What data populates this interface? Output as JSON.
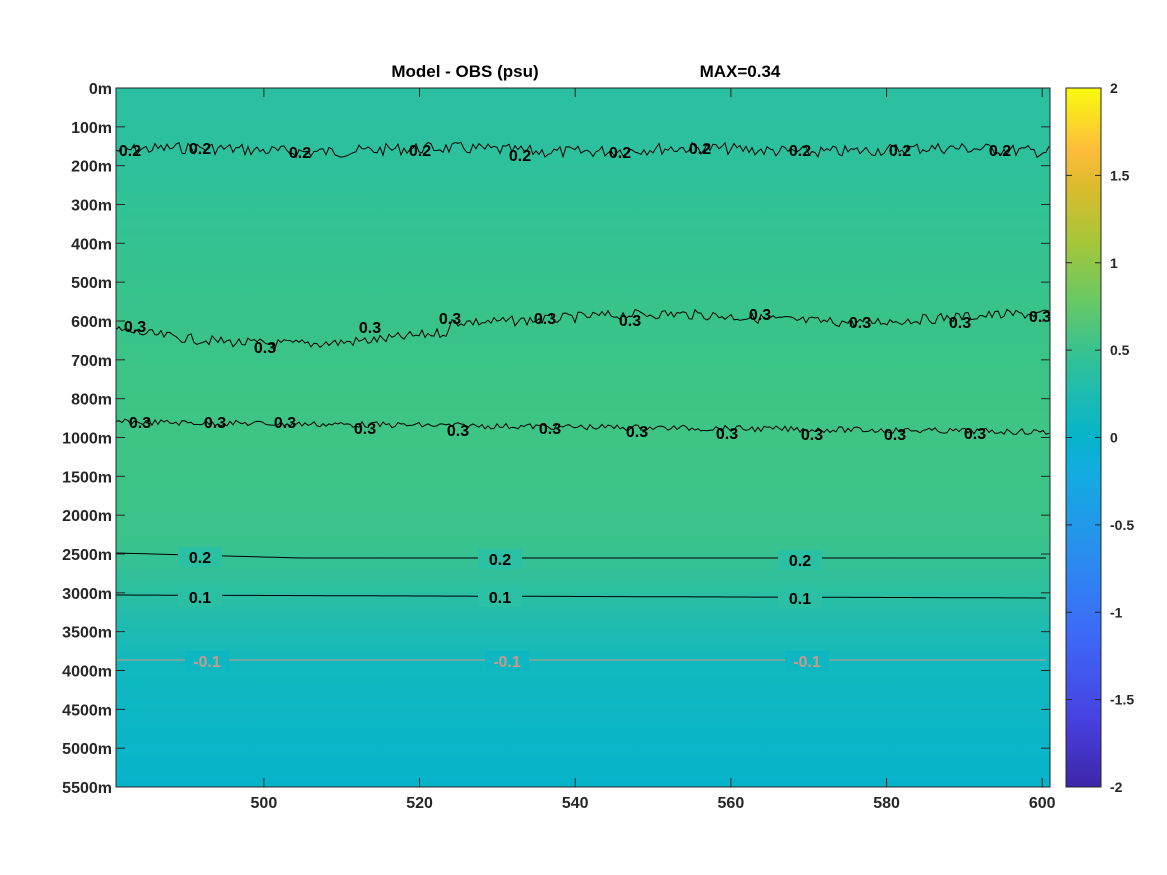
{
  "chart_data": {
    "type": "heatmap",
    "title": "Model - OBS (psu)",
    "annotation": "MAX=0.34",
    "x_ticks": [
      500,
      520,
      540,
      560,
      580,
      600
    ],
    "xlim": [
      481,
      601
    ],
    "y_ticks": [
      "0m",
      "100m",
      "200m",
      "300m",
      "400m",
      "500m",
      "600m",
      "700m",
      "800m",
      "1000m",
      "1500m",
      "2000m",
      "2500m",
      "3000m",
      "3500m",
      "4000m",
      "4500m",
      "5000m",
      "5500m"
    ],
    "colorbar": {
      "ticks": [
        2,
        1.5,
        1,
        0.5,
        0,
        -0.5,
        -1,
        -1.5,
        -2
      ],
      "clim": [
        -2,
        2
      ],
      "colormap": "parula"
    },
    "background_profile": [
      {
        "depth": "0m",
        "value": 0.22
      },
      {
        "depth": "200m",
        "value": 0.25
      },
      {
        "depth": "600m",
        "value": 0.3
      },
      {
        "depth": "800m",
        "value": 0.32
      },
      {
        "depth": "1000m",
        "value": 0.3
      },
      {
        "depth": "2000m",
        "value": 0.25
      },
      {
        "depth": "2500m",
        "value": 0.18
      },
      {
        "depth": "3000m",
        "value": 0.1
      },
      {
        "depth": "3500m",
        "value": 0.0
      },
      {
        "depth": "4000m",
        "value": -0.05
      },
      {
        "depth": "5500m",
        "value": -0.07
      }
    ],
    "contours": [
      {
        "level": 0.2,
        "label": "0.2",
        "depth": "around 150m",
        "noisy": true
      },
      {
        "level": 0.3,
        "label": "0.3",
        "depth": "around 600m",
        "noisy": true
      },
      {
        "level": 0.3,
        "label": "0.3",
        "depth": "around 900m",
        "noisy": true
      },
      {
        "level": 0.2,
        "label": "0.2",
        "depth": "around 2500m",
        "noisy": false
      },
      {
        "level": 0.1,
        "label": "0.1",
        "depth": "around 3000m",
        "noisy": false
      },
      {
        "level": -0.1,
        "label": "-0.1",
        "depth": "around 3800m",
        "noisy": false
      }
    ]
  }
}
